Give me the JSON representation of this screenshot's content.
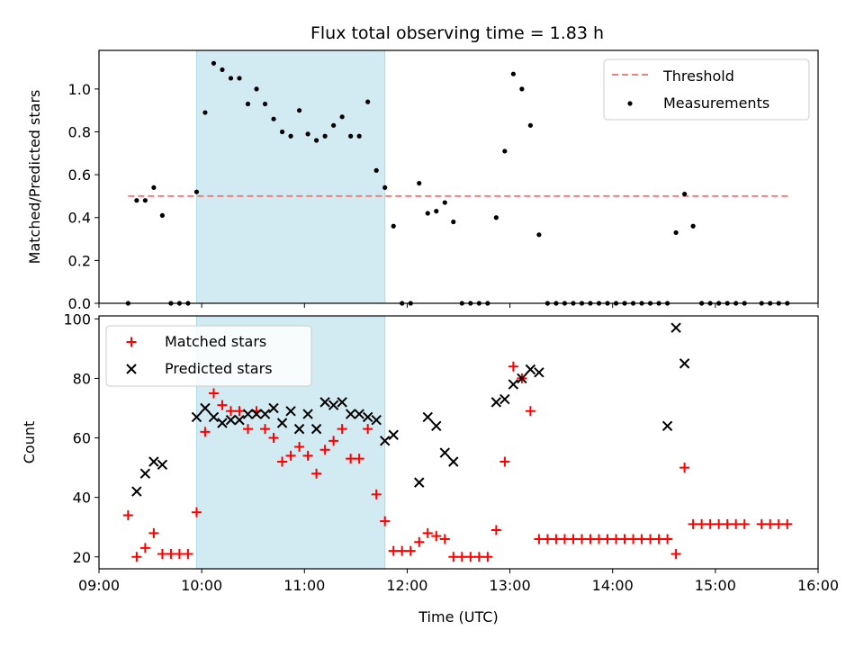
{
  "figure_title": "Flux total observing time = 1.83 h",
  "colors": {
    "threshold": "#f08080",
    "measurements": "#000000",
    "matched": "#ff0000",
    "predicted": "#000000",
    "highlight": "#add8e6"
  },
  "chart_data": [
    {
      "type": "scatter",
      "ylabel": "Matched/Predicted stars",
      "xlim": [
        "09:00",
        "16:00"
      ],
      "ylim": [
        0,
        1.18
      ],
      "yticks": [
        "0.0",
        "0.2",
        "0.4",
        "0.6",
        "0.8",
        "1.0"
      ],
      "highlight_span": [
        "09:57",
        "11:47"
      ],
      "legend": {
        "placement": "upper right",
        "threshold_label": "Threshold",
        "measurements_label": "Measurements"
      },
      "threshold": {
        "value": 0.5,
        "x_range": [
          "09:17",
          "15:43"
        ]
      },
      "series": [
        {
          "name": "Measurements",
          "x": [
            "09:17",
            "09:22",
            "09:27",
            "09:32",
            "09:37",
            "09:42",
            "09:47",
            "09:52",
            "09:57",
            "10:02",
            "10:07",
            "10:12",
            "10:17",
            "10:22",
            "10:27",
            "10:32",
            "10:37",
            "10:42",
            "10:47",
            "10:52",
            "10:57",
            "11:02",
            "11:07",
            "11:12",
            "11:17",
            "11:22",
            "11:27",
            "11:32",
            "11:37",
            "11:42",
            "11:47",
            "11:52",
            "11:57",
            "12:02",
            "12:07",
            "12:12",
            "12:17",
            "12:22",
            "12:27",
            "12:32",
            "12:37",
            "12:42",
            "12:47",
            "12:52",
            "12:57",
            "13:02",
            "13:07",
            "13:12",
            "13:17",
            "13:22",
            "13:27",
            "13:32",
            "13:37",
            "13:42",
            "13:47",
            "13:52",
            "13:57",
            "14:02",
            "14:07",
            "14:12",
            "14:17",
            "14:22",
            "14:27",
            "14:32",
            "14:37",
            "14:42",
            "14:47",
            "14:52",
            "14:57",
            "15:02",
            "15:07",
            "15:12",
            "15:17",
            "15:27",
            "15:32",
            "15:37",
            "15:42"
          ],
          "y": [
            0.0,
            0.48,
            0.48,
            0.54,
            0.41,
            0.0,
            0.0,
            0.0,
            0.52,
            0.89,
            1.12,
            1.09,
            1.05,
            1.05,
            0.93,
            1.0,
            0.93,
            0.86,
            0.8,
            0.78,
            0.9,
            0.79,
            0.76,
            0.78,
            0.83,
            0.87,
            0.78,
            0.78,
            0.94,
            0.62,
            0.54,
            0.36,
            0.0,
            0.0,
            0.56,
            0.42,
            0.43,
            0.47,
            0.38,
            0.0,
            0.0,
            0.0,
            0.0,
            0.4,
            0.71,
            1.07,
            1.0,
            0.83,
            0.32,
            0.0,
            0.0,
            0.0,
            0.0,
            0.0,
            0.0,
            0.0,
            0.0,
            0.0,
            0.0,
            0.0,
            0.0,
            0.0,
            0.0,
            0.0,
            0.33,
            0.51,
            0.36,
            0.0,
            0.0,
            0.0,
            0.0,
            0.0,
            0.0,
            0.0,
            0.0,
            0.0,
            0.0
          ]
        }
      ]
    },
    {
      "type": "scatter",
      "xlabel": "Time (UTC)",
      "ylabel": "Count",
      "xlim": [
        "09:00",
        "16:00"
      ],
      "ylim": [
        16,
        101
      ],
      "xticks": [
        "09:00",
        "10:00",
        "11:00",
        "12:00",
        "13:00",
        "14:00",
        "15:00",
        "16:00"
      ],
      "yticks": [
        "20",
        "40",
        "60",
        "80",
        "100"
      ],
      "highlight_span": [
        "09:57",
        "11:47"
      ],
      "legend": {
        "placement": "upper left"
      },
      "series": [
        {
          "name": "Matched stars",
          "marker": "plus",
          "x": [
            "09:17",
            "09:22",
            "09:27",
            "09:32",
            "09:37",
            "09:42",
            "09:47",
            "09:52",
            "09:57",
            "10:02",
            "10:07",
            "10:12",
            "10:17",
            "10:22",
            "10:27",
            "10:32",
            "10:37",
            "10:42",
            "10:47",
            "10:52",
            "10:57",
            "11:02",
            "11:07",
            "11:12",
            "11:17",
            "11:22",
            "11:27",
            "11:32",
            "11:37",
            "11:42",
            "11:47",
            "11:52",
            "11:57",
            "12:02",
            "12:07",
            "12:12",
            "12:17",
            "12:22",
            "12:27",
            "12:32",
            "12:37",
            "12:42",
            "12:47",
            "12:52",
            "12:57",
            "13:02",
            "13:07",
            "13:12",
            "13:17",
            "13:22",
            "13:27",
            "13:32",
            "13:37",
            "13:42",
            "13:47",
            "13:52",
            "13:57",
            "14:02",
            "14:07",
            "14:12",
            "14:17",
            "14:22",
            "14:27",
            "14:32",
            "14:37",
            "14:42",
            "14:47",
            "14:52",
            "14:57",
            "15:02",
            "15:07",
            "15:12",
            "15:17",
            "15:27",
            "15:32",
            "15:37",
            "15:42"
          ],
          "y": [
            34,
            20,
            23,
            28,
            21,
            21,
            21,
            21,
            35,
            62,
            75,
            71,
            69,
            69,
            63,
            69,
            63,
            60,
            52,
            54,
            57,
            54,
            48,
            56,
            59,
            63,
            53,
            53,
            63,
            41,
            32,
            22,
            22,
            22,
            25,
            28,
            27,
            26,
            20,
            20,
            20,
            20,
            20,
            29,
            52,
            84,
            80,
            69,
            26,
            26,
            26,
            26,
            26,
            26,
            26,
            26,
            26,
            26,
            26,
            26,
            26,
            26,
            26,
            26,
            21,
            50,
            31,
            31,
            31,
            31,
            31,
            31,
            31,
            31,
            31,
            31,
            31
          ]
        },
        {
          "name": "Predicted stars",
          "marker": "x",
          "x": [
            "09:22",
            "09:27",
            "09:32",
            "09:37",
            "09:57",
            "10:02",
            "10:07",
            "10:12",
            "10:17",
            "10:22",
            "10:27",
            "10:32",
            "10:37",
            "10:42",
            "10:47",
            "10:52",
            "10:57",
            "11:02",
            "11:07",
            "11:12",
            "11:17",
            "11:22",
            "11:27",
            "11:32",
            "11:37",
            "11:42",
            "11:47",
            "11:52",
            "12:07",
            "12:12",
            "12:17",
            "12:22",
            "12:27",
            "12:52",
            "12:57",
            "13:02",
            "13:07",
            "13:12",
            "13:17",
            "14:32",
            "14:37",
            "14:42"
          ],
          "y": [
            42,
            48,
            52,
            51,
            67,
            70,
            67,
            65,
            66,
            66,
            68,
            68,
            68,
            70,
            65,
            69,
            63,
            68,
            63,
            72,
            71,
            72,
            68,
            68,
            67,
            66,
            59,
            61,
            45,
            67,
            64,
            55,
            52,
            72,
            73,
            78,
            80,
            83,
            82,
            64,
            97,
            85
          ]
        }
      ]
    }
  ]
}
